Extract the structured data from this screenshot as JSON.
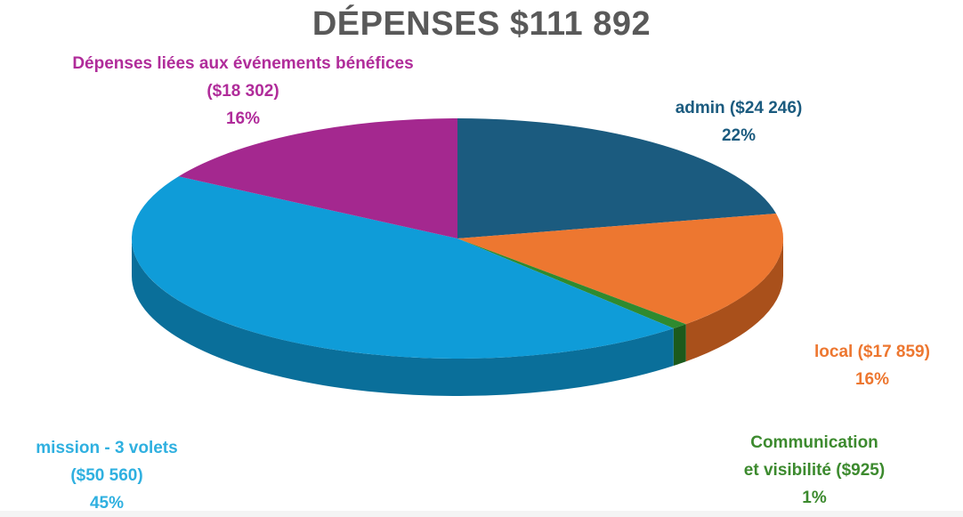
{
  "chart_data": {
    "type": "pie",
    "title": "DÉPENSES $111 892",
    "slices": [
      {
        "key": "admin",
        "lines": [
          "admin ($24 246)",
          "22%"
        ],
        "value": 24246,
        "percent": 22,
        "color": "#1b5b7f",
        "side": "#0f3a52"
      },
      {
        "key": "local",
        "lines": [
          "local ($17 859)",
          "16%"
        ],
        "value": 17859,
        "percent": 16,
        "color": "#ed7730",
        "side": "#a9501b"
      },
      {
        "key": "communication",
        "lines": [
          "Communication",
          "et visibilité ($925)",
          "1%"
        ],
        "value": 925,
        "percent": 1,
        "color": "#2f8a2f",
        "side": "#1c5a1c"
      },
      {
        "key": "mission",
        "lines": [
          "mission - 3 volets",
          "($50 560)",
          "45%"
        ],
        "value": 50560,
        "percent": 45,
        "color": "#0f9cd8",
        "side": "#0a6f9a"
      },
      {
        "key": "evenements",
        "lines": [
          "Dépenses liées aux événements bénéfices",
          "($18 302)",
          "16%"
        ],
        "value": 18302,
        "percent": 16,
        "color": "#a4288f",
        "side": "#6e1a60"
      }
    ],
    "label_colors": {
      "admin": "#1b5b7f",
      "local": "#ed7730",
      "communication": "#3c8a2e",
      "mission": "#2fb0e0",
      "evenements": "#b02c9a"
    }
  }
}
